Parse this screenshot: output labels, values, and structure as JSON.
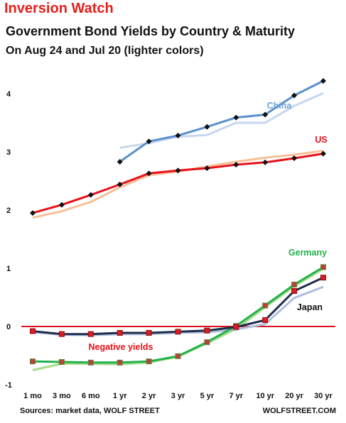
{
  "header": {
    "title": "Inversion Watch",
    "subtitle": "Government Bond Yields by Country & Maturity",
    "dates": "On Aug 24  and Jul 20 (lighter colors)"
  },
  "footer": {
    "source": "Sources: market data, WOLF STREET",
    "brand": "WOLFSTREET.COM"
  },
  "annotations": {
    "negative": "Negative yields"
  },
  "colors": {
    "china": "#5b8fcc",
    "china_light": "#c6d7ef",
    "us": "#e8111a",
    "us_light": "#f7bf97",
    "germany": "#22b14c",
    "germany_light": "#a6dc8a",
    "japan": "#1f2e4d",
    "japan_light": "#aebfdd",
    "zero_line": "#d8141d"
  },
  "chart_data": {
    "type": "line",
    "categories": [
      "1 mo",
      "3 mo",
      "6 mo",
      "1 yr",
      "2 yr",
      "3 yr",
      "5 yr",
      "7 yr",
      "10 yr",
      "20 yr",
      "30 yr"
    ],
    "ylim": [
      -1,
      4.4
    ],
    "yticks": [
      -1,
      0,
      1,
      2,
      3,
      4
    ],
    "series": [
      {
        "name": "China",
        "key": "china",
        "marker": "diamond",
        "values": [
          null,
          null,
          null,
          2.83,
          3.18,
          3.28,
          3.43,
          3.59,
          3.64,
          3.97,
          4.22
        ]
      },
      {
        "name": "",
        "key": "china_light",
        "values": [
          null,
          null,
          null,
          3.07,
          3.15,
          3.26,
          3.29,
          3.5,
          3.5,
          3.79,
          4.01
        ]
      },
      {
        "name": "US",
        "key": "us",
        "marker": "diamond",
        "values": [
          1.95,
          2.09,
          2.26,
          2.44,
          2.63,
          2.68,
          2.72,
          2.78,
          2.82,
          2.89,
          2.97
        ]
      },
      {
        "name": "",
        "key": "us_light",
        "values": [
          1.87,
          1.98,
          2.14,
          2.39,
          2.6,
          2.66,
          2.75,
          2.83,
          2.9,
          2.95,
          3.02
        ]
      },
      {
        "name": "Germany",
        "key": "germany",
        "marker": "square",
        "values": [
          -0.6,
          -0.61,
          -0.62,
          -0.62,
          -0.6,
          -0.51,
          -0.27,
          0.01,
          0.36,
          0.72,
          1.02
        ]
      },
      {
        "name": "",
        "key": "germany_light",
        "values": [
          -0.75,
          -0.64,
          -0.64,
          -0.65,
          -0.62,
          -0.52,
          -0.29,
          -0.04,
          0.33,
          0.69,
          0.99
        ]
      },
      {
        "name": "Japan",
        "key": "japan",
        "marker": "square",
        "values": [
          -0.08,
          -0.13,
          -0.13,
          -0.11,
          -0.11,
          -0.09,
          -0.07,
          -0.01,
          0.11,
          0.61,
          0.84
        ]
      },
      {
        "name": "",
        "key": "japan_light",
        "values": [
          -0.1,
          -0.14,
          -0.15,
          -0.13,
          -0.13,
          -0.11,
          -0.1,
          -0.05,
          0.04,
          0.49,
          0.68
        ]
      }
    ]
  }
}
